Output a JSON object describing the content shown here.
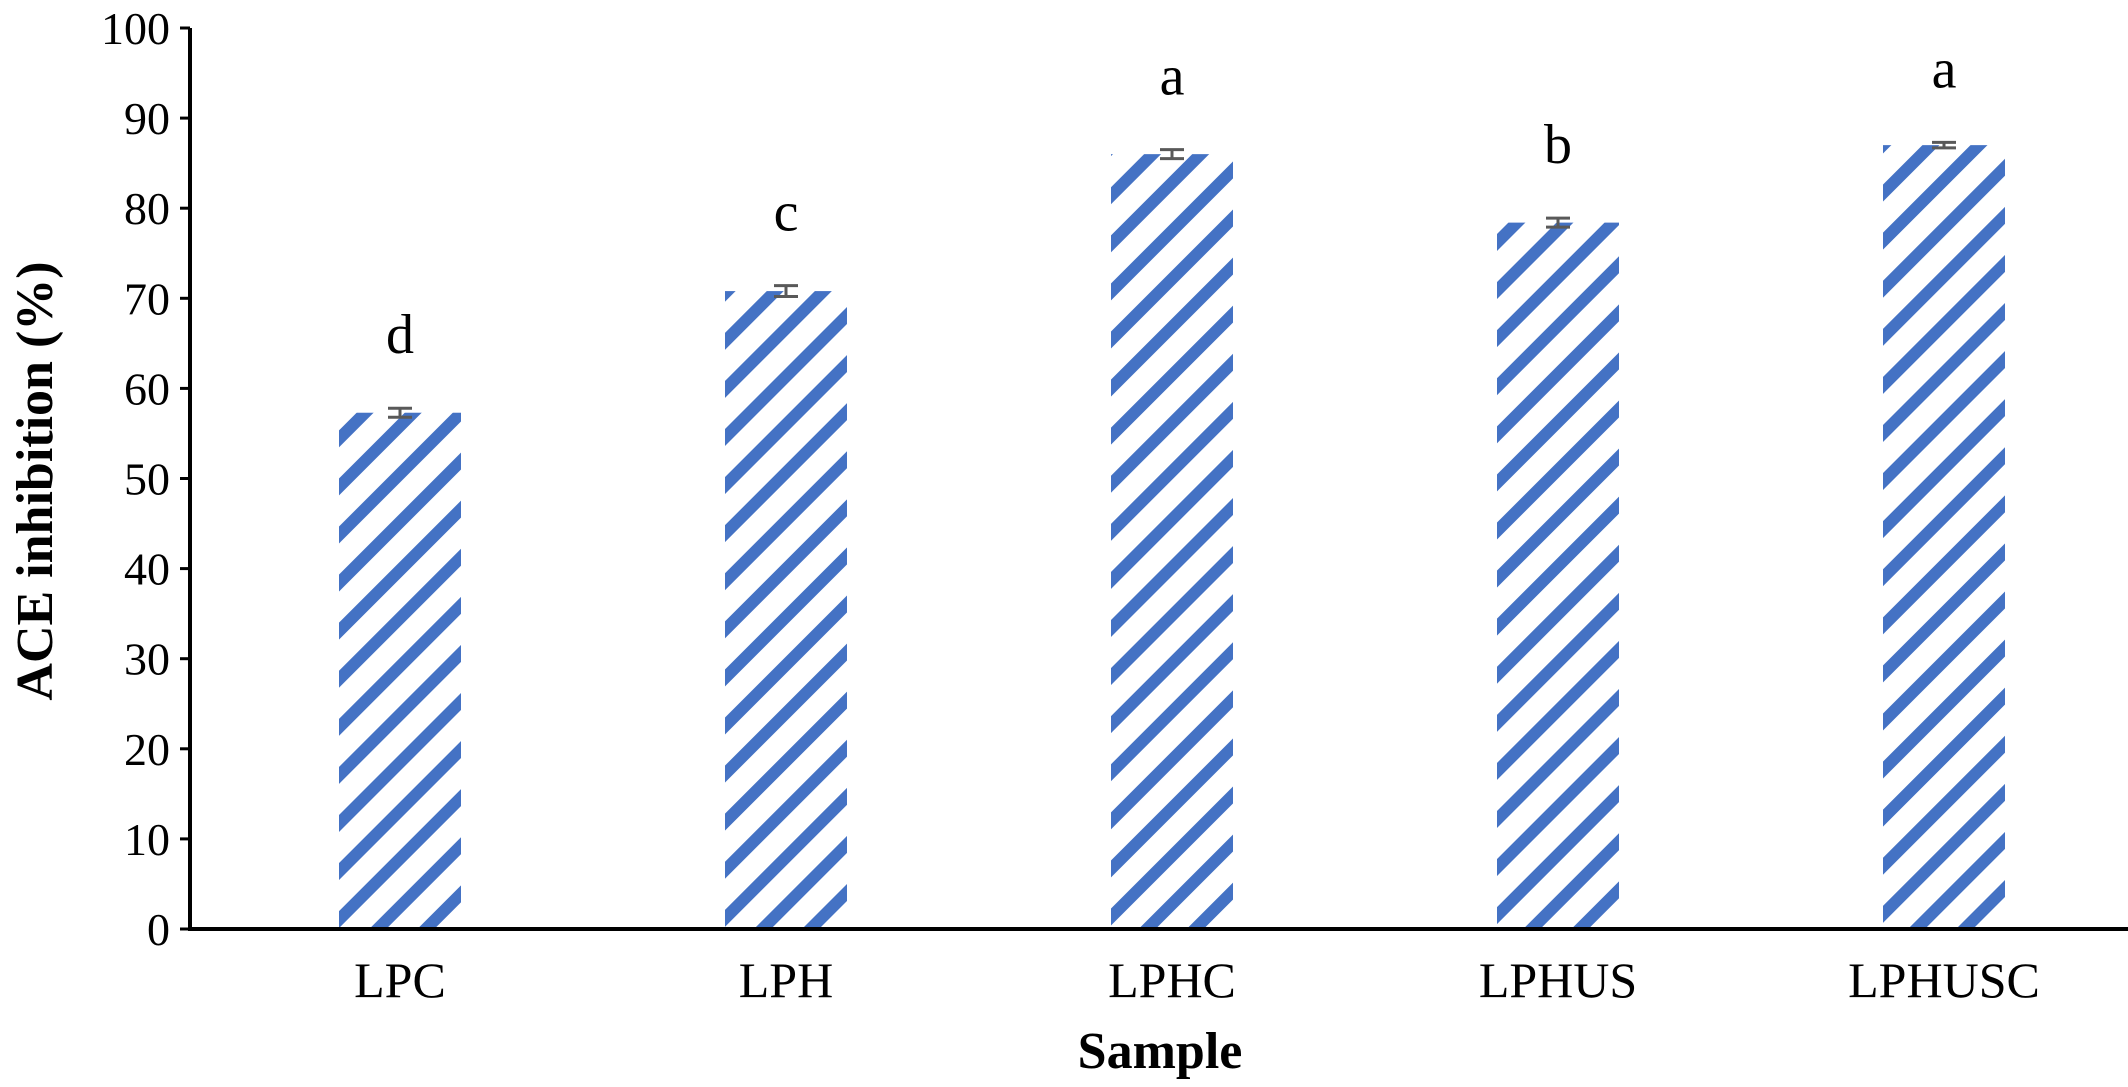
{
  "chart_data": {
    "type": "bar",
    "title": "",
    "xlabel": "Sample",
    "ylabel": "ACE inhibition (%)",
    "ylim": [
      0,
      100
    ],
    "yticks": [
      0,
      10,
      20,
      30,
      40,
      50,
      60,
      70,
      80,
      90,
      100
    ],
    "categories": [
      "LPC",
      "LPH",
      "LPHC",
      "LPHUS",
      "LPHUSC"
    ],
    "values": [
      57.3,
      70.8,
      86.0,
      78.4,
      87.0
    ],
    "errors": [
      0.5,
      0.6,
      0.5,
      0.5,
      0.3
    ],
    "significance_letters": [
      "d",
      "c",
      "a",
      "b",
      "a"
    ],
    "bar_fill": "diagonal-stripes",
    "colors": {
      "stripe": "#4472C4",
      "background": "#ffffff",
      "axis": "#000000",
      "errorbar": "#595959"
    },
    "grid": false,
    "legend": "none"
  }
}
